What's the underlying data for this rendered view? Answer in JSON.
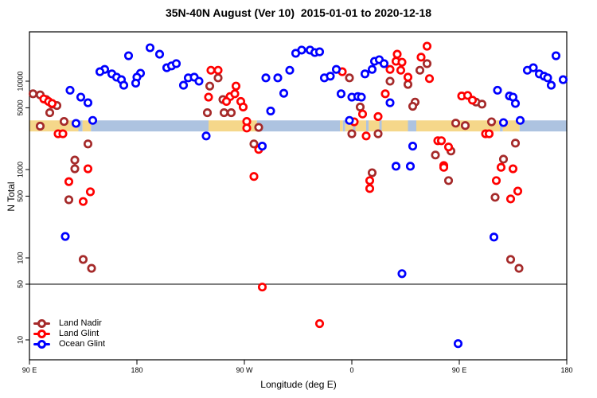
{
  "title": "35N-40N August (Ver 10)  2015-01-01 to 2020-12-18",
  "axes": {
    "x": {
      "label": "Longitude (deg E)",
      "ticks": [
        {
          "lon": 90,
          "label": "90 E"
        },
        {
          "lon": 180,
          "label": "180"
        },
        {
          "lon": 270,
          "label": "90 W"
        },
        {
          "lon": 360,
          "label": "0"
        },
        {
          "lon": 450,
          "label": "90 E"
        },
        {
          "lon": 540,
          "label": "180"
        }
      ]
    },
    "y": {
      "label": "N Total",
      "ticks": [
        {
          "value": 10000,
          "label": "10000"
        },
        {
          "value": 5000,
          "label": "5000"
        },
        {
          "value": 1000,
          "label": "1000"
        },
        {
          "value": 500,
          "label": "500"
        },
        {
          "value": 100,
          "label": "100"
        },
        {
          "value": 50,
          "label": "50"
        },
        {
          "value": 10,
          "label": "10"
        }
      ]
    }
  },
  "colors": {
    "land_nadir": "#A52A2A",
    "land_glint": "#FF0000",
    "ocean_glint": "#0000FF",
    "band_land": "#F5D78A",
    "band_ocean": "#ADC3E0",
    "axis": "#000000"
  },
  "legend": {
    "items": [
      {
        "label": "Land Nadir",
        "color": "#A52A2A"
      },
      {
        "label": "Land Glint",
        "color": "#FF0000"
      },
      {
        "label": "Ocean Glint",
        "color": "#0000FF"
      }
    ]
  },
  "chart_data": {
    "type": "scatter",
    "xlabel": "Longitude (deg E)",
    "ylabel": "N Total",
    "x_axis_note": "Longitude axis spans 450 deg: starts at 90E, wraps past 180/90W/0 back to 90E and 180; data in the 90E-180E range is plotted at both ends. Values below are in extended degrees east (90..540).",
    "xlim": [
      90,
      540
    ],
    "ylim": [
      9,
      33000
    ],
    "y_log": true,
    "grid": false,
    "legend_position": "bottom-left inside plot",
    "refline_value": 50,
    "band": {
      "description": "horizontal land/ocean surface strip drawn across the plot",
      "value_range": [
        2700,
        3600
      ],
      "segments": [
        {
          "from": 90,
          "to": 131,
          "surface": "land"
        },
        {
          "from": 131,
          "to": 134.5,
          "surface": "ocean"
        },
        {
          "from": 134.5,
          "to": 141.5,
          "surface": "land"
        },
        {
          "from": 141.5,
          "to": 240,
          "surface": "ocean"
        },
        {
          "from": 240,
          "to": 280.5,
          "surface": "land"
        },
        {
          "from": 280.5,
          "to": 350,
          "surface": "ocean"
        },
        {
          "from": 350,
          "to": 352.5,
          "surface": "land"
        },
        {
          "from": 352.5,
          "to": 354.5,
          "surface": "ocean"
        },
        {
          "from": 354.5,
          "to": 361,
          "surface": "land"
        },
        {
          "from": 361,
          "to": 363,
          "surface": "ocean"
        },
        {
          "from": 363,
          "to": 372,
          "surface": "land"
        },
        {
          "from": 372,
          "to": 374,
          "surface": "ocean"
        },
        {
          "from": 374,
          "to": 383,
          "surface": "land"
        },
        {
          "from": 383,
          "to": 385,
          "surface": "ocean"
        },
        {
          "from": 385,
          "to": 407,
          "surface": "land"
        },
        {
          "from": 407,
          "to": 414,
          "surface": "ocean"
        },
        {
          "from": 414,
          "to": 484,
          "surface": "land"
        },
        {
          "from": 484,
          "to": 486.5,
          "surface": "ocean"
        },
        {
          "from": 486.5,
          "to": 500.5,
          "surface": "land"
        },
        {
          "from": 500.5,
          "to": 540,
          "surface": "ocean"
        }
      ]
    },
    "series": [
      {
        "name": "Land Nadir",
        "color": "#A52A2A",
        "points": [
          [
            93,
            7200
          ],
          [
            99,
            7000
          ],
          [
            104,
            6200
          ],
          [
            109,
            5500
          ],
          [
            113,
            5300
          ],
          [
            107,
            4400
          ],
          [
            119,
            3500
          ],
          [
            99,
            3100
          ],
          [
            139,
            1950
          ],
          [
            128,
            1280
          ],
          [
            128,
            1020
          ],
          [
            123,
            455
          ],
          [
            135,
            96
          ],
          [
            142,
            76
          ],
          [
            248,
            10900
          ],
          [
            241,
            8800
          ],
          [
            252,
            6200
          ],
          [
            239,
            4400
          ],
          [
            253,
            4400
          ],
          [
            259,
            4400
          ],
          [
            282,
            3000
          ],
          [
            278,
            1950
          ],
          [
            423,
            15800
          ],
          [
            417,
            13300
          ],
          [
            358,
            10900
          ],
          [
            392,
            10000
          ],
          [
            407,
            9200
          ],
          [
            367,
            5100
          ],
          [
            413,
            5800
          ],
          [
            411,
            5200
          ],
          [
            360,
            2540
          ],
          [
            382,
            2540
          ],
          [
            430,
            1460
          ],
          [
            377,
            920
          ],
          [
            464,
            5800
          ],
          [
            469,
            5500
          ],
          [
            447,
            3350
          ],
          [
            455,
            3150
          ],
          [
            477,
            3470
          ],
          [
            497,
            1990
          ],
          [
            487,
            1310
          ],
          [
            443,
            1620
          ],
          [
            441,
            750
          ],
          [
            480,
            485
          ],
          [
            493,
            96
          ],
          [
            500,
            76
          ]
        ]
      },
      {
        "name": "Land Glint",
        "color": "#FF0000",
        "points": [
          [
            102,
            6300
          ],
          [
            106,
            5900
          ],
          [
            109,
            5600
          ],
          [
            114,
            2540
          ],
          [
            118,
            2540
          ],
          [
            139,
            1020
          ],
          [
            123,
            730
          ],
          [
            141,
            560
          ],
          [
            135,
            435
          ],
          [
            285,
            46
          ],
          [
            242,
            13300
          ],
          [
            248,
            13300
          ],
          [
            240,
            6600
          ],
          [
            263,
            8800
          ],
          [
            258,
            6700
          ],
          [
            262,
            7200
          ],
          [
            255,
            5900
          ],
          [
            267,
            5900
          ],
          [
            269,
            5100
          ],
          [
            272,
            3500
          ],
          [
            272,
            2950
          ],
          [
            282,
            1690
          ],
          [
            278,
            835
          ],
          [
            352,
            12800
          ],
          [
            398,
            20200
          ],
          [
            397,
            16800
          ],
          [
            392,
            13600
          ],
          [
            402,
            16400
          ],
          [
            401,
            13300
          ],
          [
            407,
            11100
          ],
          [
            418,
            18700
          ],
          [
            423,
            24900
          ],
          [
            425,
            10700
          ],
          [
            388,
            7200
          ],
          [
            369,
            4250
          ],
          [
            382,
            3980
          ],
          [
            362,
            3470
          ],
          [
            372,
            2400
          ],
          [
            432,
            2120
          ],
          [
            437,
            1110
          ],
          [
            375,
            750
          ],
          [
            375,
            610
          ],
          [
            333,
            16
          ],
          [
            452,
            6800
          ],
          [
            457,
            6900
          ],
          [
            461,
            6100
          ],
          [
            472,
            2540
          ],
          [
            475,
            2540
          ],
          [
            435,
            2120
          ],
          [
            441,
            1800
          ],
          [
            437,
            1060
          ],
          [
            485,
            1060
          ],
          [
            495,
            1020
          ],
          [
            481,
            750
          ],
          [
            499,
            570
          ],
          [
            493,
            465
          ]
        ]
      },
      {
        "name": "Ocean Glint",
        "color": "#0000FF",
        "points": [
          [
            173,
            19400
          ],
          [
            191,
            23900
          ],
          [
            199,
            20200
          ],
          [
            205,
            14200
          ],
          [
            153,
            13600
          ],
          [
            149,
            12800
          ],
          [
            159,
            12100
          ],
          [
            163,
            11100
          ],
          [
            167,
            10400
          ],
          [
            169,
            9000
          ],
          [
            183,
            12300
          ],
          [
            180,
            11100
          ],
          [
            179,
            9500
          ],
          [
            124,
            7900
          ],
          [
            133,
            6600
          ],
          [
            139,
            5700
          ],
          [
            129,
            3330
          ],
          [
            143,
            3600
          ],
          [
            120,
            175
          ],
          [
            209,
            14900
          ],
          [
            213,
            15800
          ],
          [
            219,
            9000
          ],
          [
            223,
            10900
          ],
          [
            228,
            11100
          ],
          [
            232,
            10000
          ],
          [
            313,
            20700
          ],
          [
            318,
            22500
          ],
          [
            308,
            13300
          ],
          [
            288,
            10900
          ],
          [
            298,
            10900
          ],
          [
            303,
            7300
          ],
          [
            292,
            4600
          ],
          [
            238,
            2400
          ],
          [
            285,
            1840
          ],
          [
            325,
            22500
          ],
          [
            329,
            21100
          ],
          [
            333,
            21500
          ],
          [
            337,
            10900
          ],
          [
            342,
            11400
          ],
          [
            347,
            13600
          ],
          [
            371,
            12100
          ],
          [
            377,
            13600
          ],
          [
            379,
            16800
          ],
          [
            383,
            17500
          ],
          [
            387,
            15800
          ],
          [
            351,
            7200
          ],
          [
            360,
            6600
          ],
          [
            365,
            6700
          ],
          [
            368,
            6600
          ],
          [
            392,
            5700
          ],
          [
            358,
            3600
          ],
          [
            411,
            1840
          ],
          [
            397,
            1090
          ],
          [
            409,
            1090
          ],
          [
            402,
            66
          ],
          [
            531,
            19400
          ],
          [
            507,
            13300
          ],
          [
            512,
            14200
          ],
          [
            517,
            12100
          ],
          [
            521,
            11400
          ],
          [
            524,
            10900
          ],
          [
            527,
            9000
          ],
          [
            537,
            10400
          ],
          [
            482,
            7900
          ],
          [
            492,
            6800
          ],
          [
            495,
            6600
          ],
          [
            497,
            5600
          ],
          [
            487,
            3400
          ],
          [
            501,
            3600
          ],
          [
            479,
            172
          ],
          [
            449,
            9
          ]
        ]
      }
    ]
  }
}
